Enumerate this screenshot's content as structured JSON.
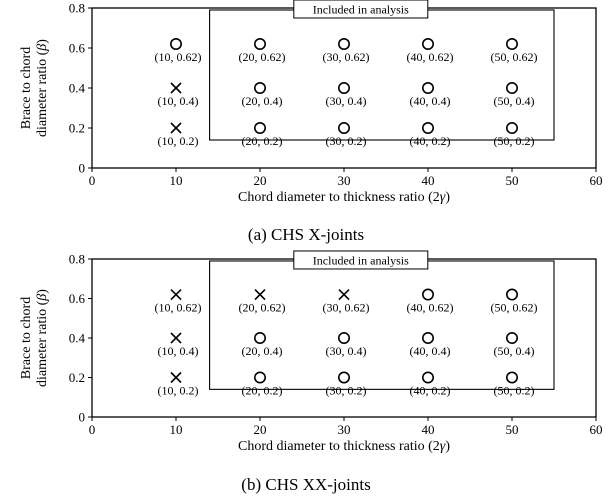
{
  "chart_data": [
    {
      "type": "scatter",
      "caption": "(a) CHS X-joints",
      "xlabel": "Chord diameter to thickness ratio (2",
      "xlabel_symbol": "γ",
      "xlabel_suffix": ")",
      "ylabel_line1": "Brace to chord",
      "ylabel_line2": "diameter ratio (",
      "ylabel_symbol": "β",
      "ylabel_suffix": ")",
      "xlim": [
        0,
        60
      ],
      "ylim": [
        0,
        0.8
      ],
      "xticks": [
        0,
        10,
        20,
        30,
        40,
        50,
        60
      ],
      "yticks": [
        0,
        0.2,
        0.4,
        0.6,
        0.8
      ],
      "ytick_labels": [
        "0",
        "0.2",
        "0.4",
        "0.6",
        "0.8"
      ],
      "region": {
        "label": "Included in analysis",
        "x_range": [
          14,
          55
        ],
        "y_range": [
          0.14,
          0.79
        ]
      },
      "points": [
        {
          "x": 10,
          "y": 0.62,
          "marker": "circle",
          "label": "(10, 0.62)"
        },
        {
          "x": 10,
          "y": 0.4,
          "marker": "cross",
          "label": "(10, 0.4)"
        },
        {
          "x": 10,
          "y": 0.2,
          "marker": "cross",
          "label": "(10, 0.2)"
        },
        {
          "x": 20,
          "y": 0.62,
          "marker": "circle",
          "label": "(20, 0.62)"
        },
        {
          "x": 20,
          "y": 0.4,
          "marker": "circle",
          "label": "(20, 0.4)"
        },
        {
          "x": 20,
          "y": 0.2,
          "marker": "circle",
          "label": "(20, 0.2)"
        },
        {
          "x": 30,
          "y": 0.62,
          "marker": "circle",
          "label": "(30, 0.62)"
        },
        {
          "x": 30,
          "y": 0.4,
          "marker": "circle",
          "label": "(30, 0.4)"
        },
        {
          "x": 30,
          "y": 0.2,
          "marker": "circle",
          "label": "(30, 0.2)"
        },
        {
          "x": 40,
          "y": 0.62,
          "marker": "circle",
          "label": "(40, 0.62)"
        },
        {
          "x": 40,
          "y": 0.4,
          "marker": "circle",
          "label": "(40, 0.4)"
        },
        {
          "x": 40,
          "y": 0.2,
          "marker": "circle",
          "label": "(40, 0.2)"
        },
        {
          "x": 50,
          "y": 0.62,
          "marker": "circle",
          "label": "(50, 0.62)"
        },
        {
          "x": 50,
          "y": 0.4,
          "marker": "circle",
          "label": "(50, 0.4)"
        },
        {
          "x": 50,
          "y": 0.2,
          "marker": "circle",
          "label": "(50, 0.2)"
        }
      ]
    },
    {
      "type": "scatter",
      "caption": "(b) CHS XX-joints",
      "xlabel": "Chord diameter to thickness ratio (2",
      "xlabel_symbol": "γ",
      "xlabel_suffix": ")",
      "ylabel_line1": "Brace to chord",
      "ylabel_line2": "diameter ratio (",
      "ylabel_symbol": "β",
      "ylabel_suffix": ")",
      "xlim": [
        0,
        60
      ],
      "ylim": [
        0,
        0.8
      ],
      "xticks": [
        0,
        10,
        20,
        30,
        40,
        50,
        60
      ],
      "yticks": [
        0,
        0.2,
        0.4,
        0.6,
        0.8
      ],
      "ytick_labels": [
        "0",
        "0.2",
        "0.4",
        "0.6",
        "0.8"
      ],
      "region": {
        "label": "Included in analysis",
        "x_range": [
          14,
          55
        ],
        "y_range": [
          0.14,
          0.79
        ]
      },
      "points": [
        {
          "x": 10,
          "y": 0.62,
          "marker": "cross",
          "label": "(10, 0.62)"
        },
        {
          "x": 10,
          "y": 0.4,
          "marker": "cross",
          "label": "(10, 0.4)"
        },
        {
          "x": 10,
          "y": 0.2,
          "marker": "cross",
          "label": "(10, 0.2)"
        },
        {
          "x": 20,
          "y": 0.62,
          "marker": "cross",
          "label": "(20, 0.62)"
        },
        {
          "x": 20,
          "y": 0.4,
          "marker": "circle",
          "label": "(20, 0.4)"
        },
        {
          "x": 20,
          "y": 0.2,
          "marker": "circle",
          "label": "(20, 0.2)"
        },
        {
          "x": 30,
          "y": 0.62,
          "marker": "cross",
          "label": "(30, 0.62)"
        },
        {
          "x": 30,
          "y": 0.4,
          "marker": "circle",
          "label": "(30, 0.4)"
        },
        {
          "x": 30,
          "y": 0.2,
          "marker": "circle",
          "label": "(30, 0.2)"
        },
        {
          "x": 40,
          "y": 0.62,
          "marker": "circle",
          "label": "(40, 0.62)"
        },
        {
          "x": 40,
          "y": 0.4,
          "marker": "circle",
          "label": "(40, 0.4)"
        },
        {
          "x": 40,
          "y": 0.2,
          "marker": "circle",
          "label": "(40, 0.2)"
        },
        {
          "x": 50,
          "y": 0.62,
          "marker": "circle",
          "label": "(50, 0.62)"
        },
        {
          "x": 50,
          "y": 0.4,
          "marker": "circle",
          "label": "(50, 0.4)"
        },
        {
          "x": 50,
          "y": 0.2,
          "marker": "circle",
          "label": "(50, 0.2)"
        }
      ]
    }
  ]
}
